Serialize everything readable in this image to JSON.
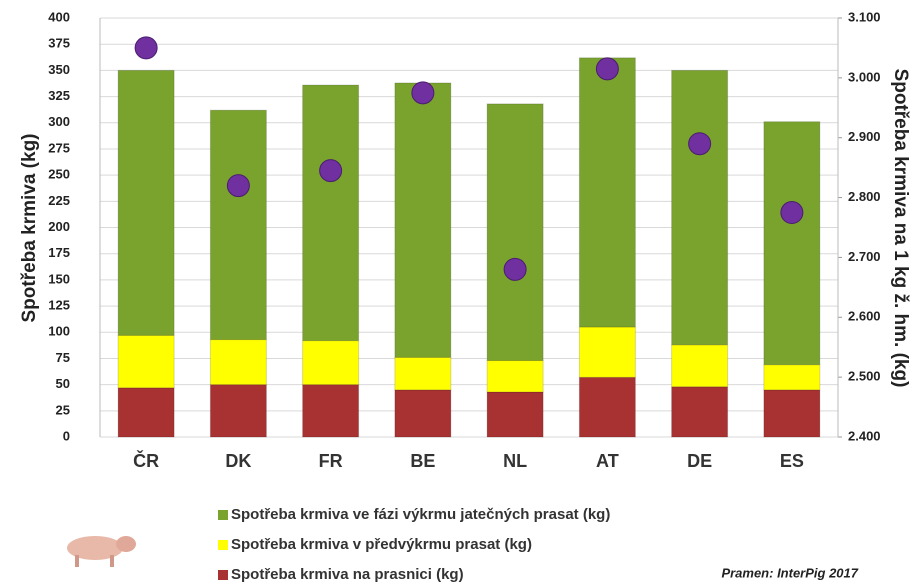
{
  "chart_data": {
    "type": "bar",
    "categories": [
      "ČR",
      "DK",
      "FR",
      "BE",
      "NL",
      "AT",
      "DE",
      "ES"
    ],
    "series": [
      {
        "name": "Spotřeba krmiva na prasnici (kg)",
        "color": "#a83232",
        "values": [
          47,
          50,
          50,
          45,
          43,
          57,
          48,
          45
        ]
      },
      {
        "name": "Spotřeba krmiva v předvýkrmu  prasat (kg)",
        "color": "#ffff00",
        "values": [
          50,
          43,
          42,
          31,
          30,
          48,
          40,
          24
        ]
      },
      {
        "name": "Spotřeba krmiva ve fázi výkrmu jatečných prasat (kg)",
        "color": "#7aa32e",
        "values": [
          253,
          219,
          244,
          262,
          245,
          257,
          262,
          232
        ]
      },
      {
        "type": "scatter",
        "axis": "y2",
        "color": "#7030a0",
        "values": [
          3.05,
          2.82,
          2.845,
          2.975,
          2.68,
          3.015,
          2.89,
          2.775
        ]
      }
    ],
    "y_label": "Spotřeba krmiva (kg)",
    "y2_label": "Spotřeba krmiva na 1 kg ž. hm. (kg)",
    "ylim": [
      0,
      400
    ],
    "yticks": [
      0,
      25,
      50,
      75,
      100,
      125,
      150,
      175,
      200,
      225,
      250,
      275,
      300,
      325,
      350,
      375,
      400
    ],
    "y2lim": [
      2.4,
      3.1
    ],
    "y2ticks": [
      {
        "value": 2.4,
        "label": "2.400"
      },
      {
        "value": 2.5,
        "label": "2.500"
      },
      {
        "value": 2.6,
        "label": "2.600"
      },
      {
        "value": 2.7,
        "label": "2.700"
      },
      {
        "value": 2.8,
        "label": "2.800"
      },
      {
        "value": 2.9,
        "label": "2.900"
      },
      {
        "value": 3.0,
        "label": "3.000"
      },
      {
        "value": 3.1,
        "label": "3.100"
      }
    ],
    "grid": true,
    "annotation": "Pramen: InterPig 2017"
  }
}
